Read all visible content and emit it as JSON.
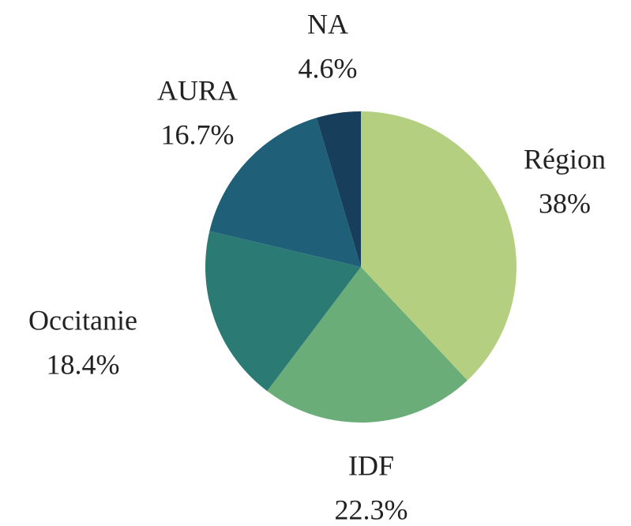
{
  "chart_data": {
    "type": "pie",
    "categories": [
      "Région",
      "IDF",
      "Occitanie",
      "AURA",
      "NA"
    ],
    "values": [
      38,
      22.3,
      18.4,
      16.7,
      4.6
    ],
    "value_labels": [
      "38%",
      "22.3%",
      "18.4%",
      "16.7%",
      "4.6%"
    ],
    "colors": [
      "#b5cf80",
      "#6bad78",
      "#2b7b74",
      "#1f5f78",
      "#173f5c"
    ]
  }
}
